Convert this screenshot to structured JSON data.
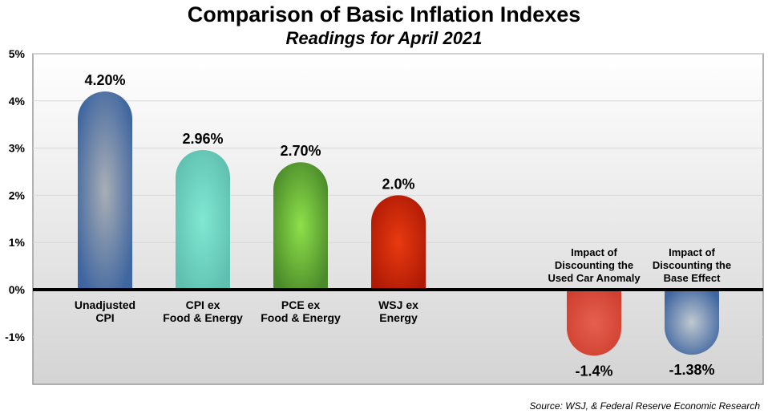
{
  "chart_data": {
    "type": "bar",
    "title": "Comparison of Basic Inflation Indexes",
    "subtitle": "Readings for April 2021",
    "xlabel": "",
    "ylabel": "",
    "ylim": [
      -2,
      5
    ],
    "yticks": [
      -1,
      0,
      1,
      2,
      3,
      4,
      5
    ],
    "ytick_labels": [
      "-1%",
      "0%",
      "1%",
      "2%",
      "3%",
      "4%",
      "5%"
    ],
    "grid": true,
    "categories": [
      [
        "Unadjusted",
        "CPI"
      ],
      [
        "CPI ex",
        "Food & Energy"
      ],
      [
        "PCE ex",
        "Food & Energy"
      ],
      [
        "WSJ ex",
        "Energy"
      ],
      [
        "Impact of",
        "Discounting the",
        "Used Car Anomaly"
      ],
      [
        "Impact of",
        "Discounting the",
        "Base Effect"
      ]
    ],
    "values": [
      4.2,
      2.96,
      2.7,
      2.0,
      -1.4,
      -1.38
    ],
    "data_labels": [
      "4.20%",
      "2.96%",
      "2.70%",
      "2.0%",
      "-1.4%",
      "-1.38%"
    ],
    "colors": [
      "#3f66a0",
      "#5fbfb0",
      "#4a8a2a",
      "#b01a05",
      "#d04030",
      "#3f66a0"
    ],
    "highlight_colors": [
      "#a9aeb5",
      "#80e8d2",
      "#8ee04a",
      "#e83a10",
      "#e56050",
      "#c0c8d0"
    ],
    "source": "Source: WSJ, & Federal Reserve Economic Research"
  }
}
